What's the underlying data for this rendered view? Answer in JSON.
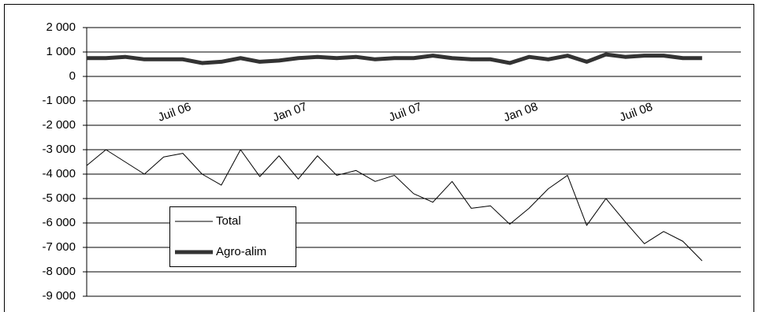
{
  "chart_data": {
    "type": "line",
    "categories": [
      null,
      null,
      null,
      null,
      "Juil 06",
      null,
      null,
      null,
      null,
      null,
      "Jan 07",
      null,
      null,
      null,
      null,
      null,
      "Juil 07",
      null,
      null,
      null,
      null,
      null,
      "Jan 08",
      null,
      null,
      null,
      null,
      null,
      "Juil 08",
      null,
      null,
      null,
      null
    ],
    "series": [
      {
        "name": "Total",
        "color": "#000000",
        "width": 1,
        "values": [
          -3650,
          -3000,
          -3500,
          -4000,
          -3300,
          -3150,
          -4000,
          -4450,
          -3000,
          -4100,
          -3250,
          -4200,
          -3250,
          -4050,
          -3850,
          -4300,
          -4050,
          -4800,
          -5150,
          -4300,
          -5400,
          -5300,
          -6050,
          -5400,
          -4600,
          -4050,
          -6100,
          -5000,
          -5950,
          -6850,
          -6350,
          -6750,
          -7550
        ]
      },
      {
        "name": "Agro-alim",
        "color": "#333333",
        "width": 5,
        "values": [
          750,
          750,
          800,
          700,
          700,
          700,
          550,
          600,
          750,
          600,
          650,
          750,
          800,
          750,
          800,
          700,
          750,
          750,
          850,
          750,
          700,
          700,
          550,
          800,
          700,
          850,
          600,
          900,
          800,
          850,
          850,
          750,
          750
        ]
      }
    ],
    "ylim": [
      -9000,
      2000
    ],
    "yticks": [
      {
        "value": 2000,
        "label": "2 000"
      },
      {
        "value": 1000,
        "label": "1 000"
      },
      0,
      {
        "value": -1000,
        "label": "-1 000"
      },
      {
        "value": -2000,
        "label": "-2 000"
      },
      {
        "value": -3000,
        "label": "-3 000"
      },
      {
        "value": -4000,
        "label": "-4 000"
      },
      {
        "value": -5000,
        "label": "-5 000"
      },
      {
        "value": -6000,
        "label": "-6 000"
      },
      {
        "value": -7000,
        "label": "-7 000"
      },
      {
        "value": -8000,
        "label": "-8 000"
      },
      {
        "value": -9000,
        "label": "-9 000"
      }
    ],
    "grid": true
  }
}
